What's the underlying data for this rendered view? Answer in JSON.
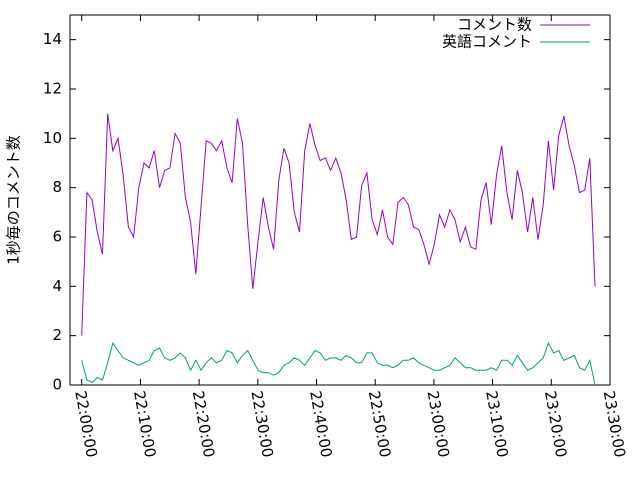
{
  "chart_data": {
    "type": "line",
    "y_label": "1秒毎のコメント数",
    "x": [
      79200,
      79253,
      79306,
      79359,
      79412,
      79465,
      79518,
      79571,
      79624,
      79677,
      79730,
      79783,
      79836,
      79889,
      79942,
      79995,
      80048,
      80101,
      80154,
      80207,
      80260,
      80313,
      80366,
      80419,
      80472,
      80525,
      80578,
      80631,
      80684,
      80737,
      80790,
      80843,
      80896,
      80949,
      81002,
      81055,
      81108,
      81161,
      81214,
      81267,
      81320,
      81373,
      81426,
      81479,
      81532,
      81585,
      81638,
      81691,
      81744,
      81797,
      81850,
      81903,
      81956,
      82009,
      82062,
      82115,
      82168,
      82221,
      82274,
      82327,
      82380,
      82433,
      82486,
      82539,
      82592,
      82645,
      82698,
      82751,
      82804,
      82857,
      82910,
      82963,
      83016,
      83069,
      83122,
      83175,
      83228,
      83281,
      83334,
      83387,
      83440,
      83493,
      83546,
      83599,
      83652,
      83705,
      83758,
      83811,
      83864,
      83917,
      83970,
      84023,
      84076,
      84129,
      84182,
      84235,
      84288,
      84341,
      84394,
      84447
    ],
    "series": [
      {
        "name": "コメント数",
        "color": "#9400d3",
        "values": [
          2.0,
          7.8,
          7.5,
          6.2,
          5.3,
          11.0,
          9.5,
          10.0,
          8.5,
          6.4,
          6.0,
          8.0,
          9.0,
          8.8,
          9.5,
          8.0,
          8.7,
          8.8,
          10.2,
          9.8,
          7.6,
          6.6,
          4.5,
          7.2,
          9.9,
          9.8,
          9.5,
          9.9,
          8.8,
          8.2,
          10.8,
          9.8,
          6.5,
          3.9,
          5.8,
          7.6,
          6.4,
          5.5,
          8.3,
          9.6,
          9.0,
          7.0,
          6.2,
          9.5,
          10.6,
          9.7,
          9.1,
          9.2,
          8.7,
          9.2,
          8.6,
          7.5,
          5.9,
          6.0,
          8.1,
          8.6,
          6.7,
          6.1,
          7.1,
          6.0,
          5.7,
          7.4,
          7.6,
          7.3,
          6.4,
          6.3,
          5.7,
          4.9,
          5.7,
          6.9,
          6.4,
          7.1,
          6.7,
          5.8,
          6.4,
          5.6,
          5.5,
          7.5,
          8.2,
          6.5,
          8.5,
          9.7,
          7.8,
          6.7,
          8.7,
          7.8,
          6.2,
          7.6,
          5.9,
          7.3,
          9.9,
          7.9,
          10.1,
          10.9,
          9.7,
          8.9,
          7.8,
          7.9,
          9.2,
          4.0
        ]
      },
      {
        "name": "英語コメント",
        "color": "#009e73",
        "values": [
          1.0,
          0.2,
          0.1,
          0.3,
          0.2,
          0.9,
          1.7,
          1.4,
          1.1,
          1.0,
          0.9,
          0.8,
          0.9,
          1.0,
          1.4,
          1.5,
          1.1,
          1.0,
          1.1,
          1.3,
          1.1,
          0.6,
          1.0,
          0.6,
          0.9,
          1.1,
          0.9,
          1.0,
          1.4,
          1.3,
          0.9,
          1.2,
          1.4,
          1.0,
          0.6,
          0.5,
          0.5,
          0.4,
          0.5,
          0.8,
          0.9,
          1.1,
          1.0,
          0.8,
          1.1,
          1.4,
          1.3,
          1.0,
          1.1,
          1.1,
          1.0,
          1.2,
          1.1,
          0.9,
          0.9,
          1.3,
          1.3,
          0.9,
          0.8,
          0.8,
          0.7,
          0.8,
          1.0,
          1.0,
          1.1,
          0.9,
          0.8,
          0.7,
          0.6,
          0.6,
          0.7,
          0.8,
          1.1,
          0.9,
          0.7,
          0.7,
          0.6,
          0.6,
          0.6,
          0.7,
          0.6,
          1.0,
          1.0,
          0.8,
          1.2,
          0.9,
          0.6,
          0.7,
          0.9,
          1.1,
          1.7,
          1.3,
          1.4,
          1.0,
          1.1,
          1.2,
          0.7,
          0.6,
          1.0,
          0.0
        ]
      }
    ],
    "xlim": [
      79080,
      84600
    ],
    "xticks": [
      {
        "value": 79200,
        "label": "22:00:00"
      },
      {
        "value": 79800,
        "label": "22:10:00"
      },
      {
        "value": 80400,
        "label": "22:20:00"
      },
      {
        "value": 81000,
        "label": "22:30:00"
      },
      {
        "value": 81600,
        "label": "22:40:00"
      },
      {
        "value": 82200,
        "label": "22:50:00"
      },
      {
        "value": 82800,
        "label": "23:00:00"
      },
      {
        "value": 83400,
        "label": "23:10:00"
      },
      {
        "value": 84000,
        "label": "23:20:00"
      },
      {
        "value": 84600,
        "label": "23:30:00"
      }
    ],
    "ylim": [
      0,
      15
    ],
    "yticks": [
      0,
      2,
      4,
      6,
      8,
      10,
      12,
      14
    ],
    "legend": "top-right"
  }
}
